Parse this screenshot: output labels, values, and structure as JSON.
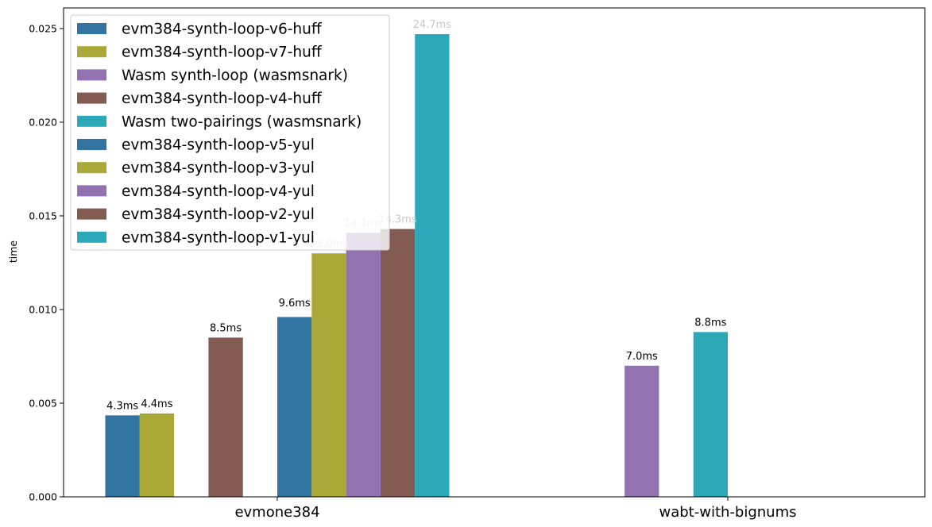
{
  "chart_data": {
    "type": "bar",
    "title": "",
    "xlabel": "",
    "ylabel": "time",
    "ylim": [
      0,
      0.0261
    ],
    "y_ticks": [
      "0.000",
      "0.005",
      "0.010",
      "0.015",
      "0.020",
      "0.025"
    ],
    "y_tick_values": [
      0,
      0.005,
      0.01,
      0.015,
      0.02,
      0.025
    ],
    "categories": [
      "evmone384",
      "wabt-with-bignums"
    ],
    "legend_placement": "top-left",
    "grid": false,
    "series": [
      {
        "name": "evm384-synth-loop-v6-huff",
        "color": "#3274a1",
        "values": [
          0.00435,
          null
        ],
        "labels": [
          "4.3ms",
          null
        ]
      },
      {
        "name": "evm384-synth-loop-v7-huff",
        "color": "#aaa937",
        "values": [
          0.00445,
          null
        ],
        "labels": [
          "4.4ms",
          null
        ]
      },
      {
        "name": "Wasm synth-loop (wasmsnark)",
        "color": "#9372b2",
        "values": [
          null,
          0.007
        ],
        "labels": [
          null,
          "7.0ms"
        ]
      },
      {
        "name": "evm384-synth-loop-v4-huff",
        "color": "#845b53",
        "values": [
          0.0085,
          null
        ],
        "labels": [
          "8.5ms",
          null
        ]
      },
      {
        "name": "Wasm two-pairings (wasmsnark)",
        "color": "#2ca9b8",
        "values": [
          null,
          0.0088
        ],
        "labels": [
          null,
          "8.8ms"
        ]
      },
      {
        "name": "evm384-synth-loop-v5-yul",
        "color": "#3274a1",
        "values": [
          0.0096,
          null
        ],
        "labels": [
          "9.6ms",
          null
        ]
      },
      {
        "name": "evm384-synth-loop-v3-yul",
        "color": "#aaa937",
        "values": [
          0.013,
          null
        ],
        "labels": [
          "13.0ms",
          null
        ]
      },
      {
        "name": "evm384-synth-loop-v4-yul",
        "color": "#9372b2",
        "values": [
          0.0141,
          null
        ],
        "labels": [
          "14.1ms",
          null
        ]
      },
      {
        "name": "evm384-synth-loop-v2-yul",
        "color": "#845b53",
        "values": [
          0.0143,
          null
        ],
        "labels": [
          "14.3ms",
          null
        ]
      },
      {
        "name": "evm384-synth-loop-v1-yul",
        "color": "#2ca9b8",
        "values": [
          0.0247,
          null
        ],
        "labels": [
          "24.7ms",
          null
        ]
      }
    ]
  }
}
